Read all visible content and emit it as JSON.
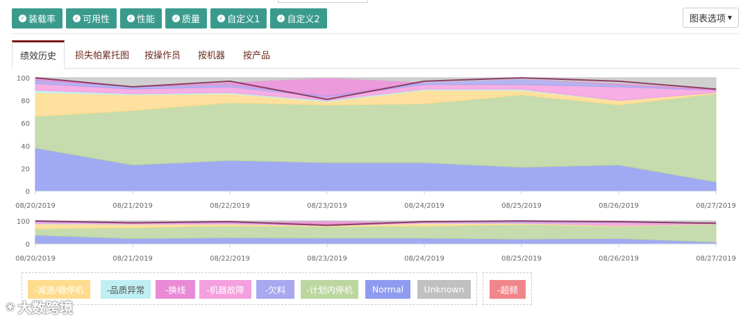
{
  "toolbar": {
    "metrics": [
      "装载率",
      "可用性",
      "性能",
      "质量",
      "自定义1",
      "自定义2"
    ],
    "options_label": "图表选项"
  },
  "tabs": [
    "绩效历史",
    "损失帕累托图",
    "按操作员",
    "按机器",
    "按产品"
  ],
  "watermark": "大数跨境",
  "colors": {
    "accent": "#3a9b8d",
    "active_tab_border": "#7a1414",
    "tab_text": "#6b2a1a"
  },
  "chart_data": {
    "type": "area",
    "stacked": true,
    "x": [
      "08/20/2019",
      "08/21/2019",
      "08/22/2019",
      "08/23/2019",
      "08/24/2019",
      "08/25/2019",
      "08/26/2019",
      "08/27/2019"
    ],
    "ylim": [
      0,
      100
    ],
    "yticks": [
      0,
      20,
      40,
      60,
      80,
      100
    ],
    "navigator_yticks": [
      0,
      100
    ],
    "grid": true,
    "series": [
      {
        "name": "Normal",
        "color": "#8f9bf0",
        "values": [
          38,
          23,
          27,
          25,
          25,
          21,
          23,
          8
        ]
      },
      {
        "name": "-计划内停机",
        "color": "#bcd6a0",
        "values": [
          28,
          48,
          51,
          51,
          52,
          64,
          53,
          78
        ]
      },
      {
        "name": "-减速/微停机",
        "color": "#fedc8e",
        "values": [
          21,
          14,
          8,
          3,
          12,
          4,
          4,
          1
        ]
      },
      {
        "name": "-品质异常",
        "color": "#bfeff2",
        "values": [
          2,
          1,
          1,
          1,
          1,
          1,
          0,
          0
        ]
      },
      {
        "name": "-机器故障",
        "color": "#f4a0df",
        "values": [
          6,
          4,
          5,
          3,
          4,
          4,
          12,
          2
        ]
      },
      {
        "name": "-欠料",
        "color": "#a8a7ef",
        "values": [
          3,
          2,
          2,
          1,
          2,
          5,
          2,
          0
        ]
      },
      {
        "name": "-换线",
        "color": "#e88ad6",
        "values": [
          2,
          0,
          2,
          16,
          0,
          0,
          1,
          1
        ]
      },
      {
        "name": "Unknown",
        "color": "#c8c8c8",
        "values": [
          0,
          8,
          4,
          0,
          4,
          1,
          5,
          10
        ]
      }
    ],
    "top_line": {
      "color": "#8d3d64",
      "values": [
        100,
        92,
        97,
        81,
        97,
        100,
        97,
        90
      ]
    },
    "legend": [
      {
        "label": "-减速/微停机",
        "color": "#fedc8e"
      },
      {
        "label": "-品质异常",
        "color": "#bfeff2",
        "text_color": "#555555"
      },
      {
        "label": "-换线",
        "color": "#e88ad6"
      },
      {
        "label": "-机器故障",
        "color": "#f4a0df"
      },
      {
        "label": "-欠料",
        "color": "#a8a7ef"
      },
      {
        "label": "-计划内停机",
        "color": "#bcd6a0"
      },
      {
        "label": "Normal",
        "color": "#8f9bf0"
      },
      {
        "label": "Unknown",
        "color": "#c0c0c0"
      },
      {
        "label": "-超频",
        "color": "#f0868a"
      }
    ]
  }
}
